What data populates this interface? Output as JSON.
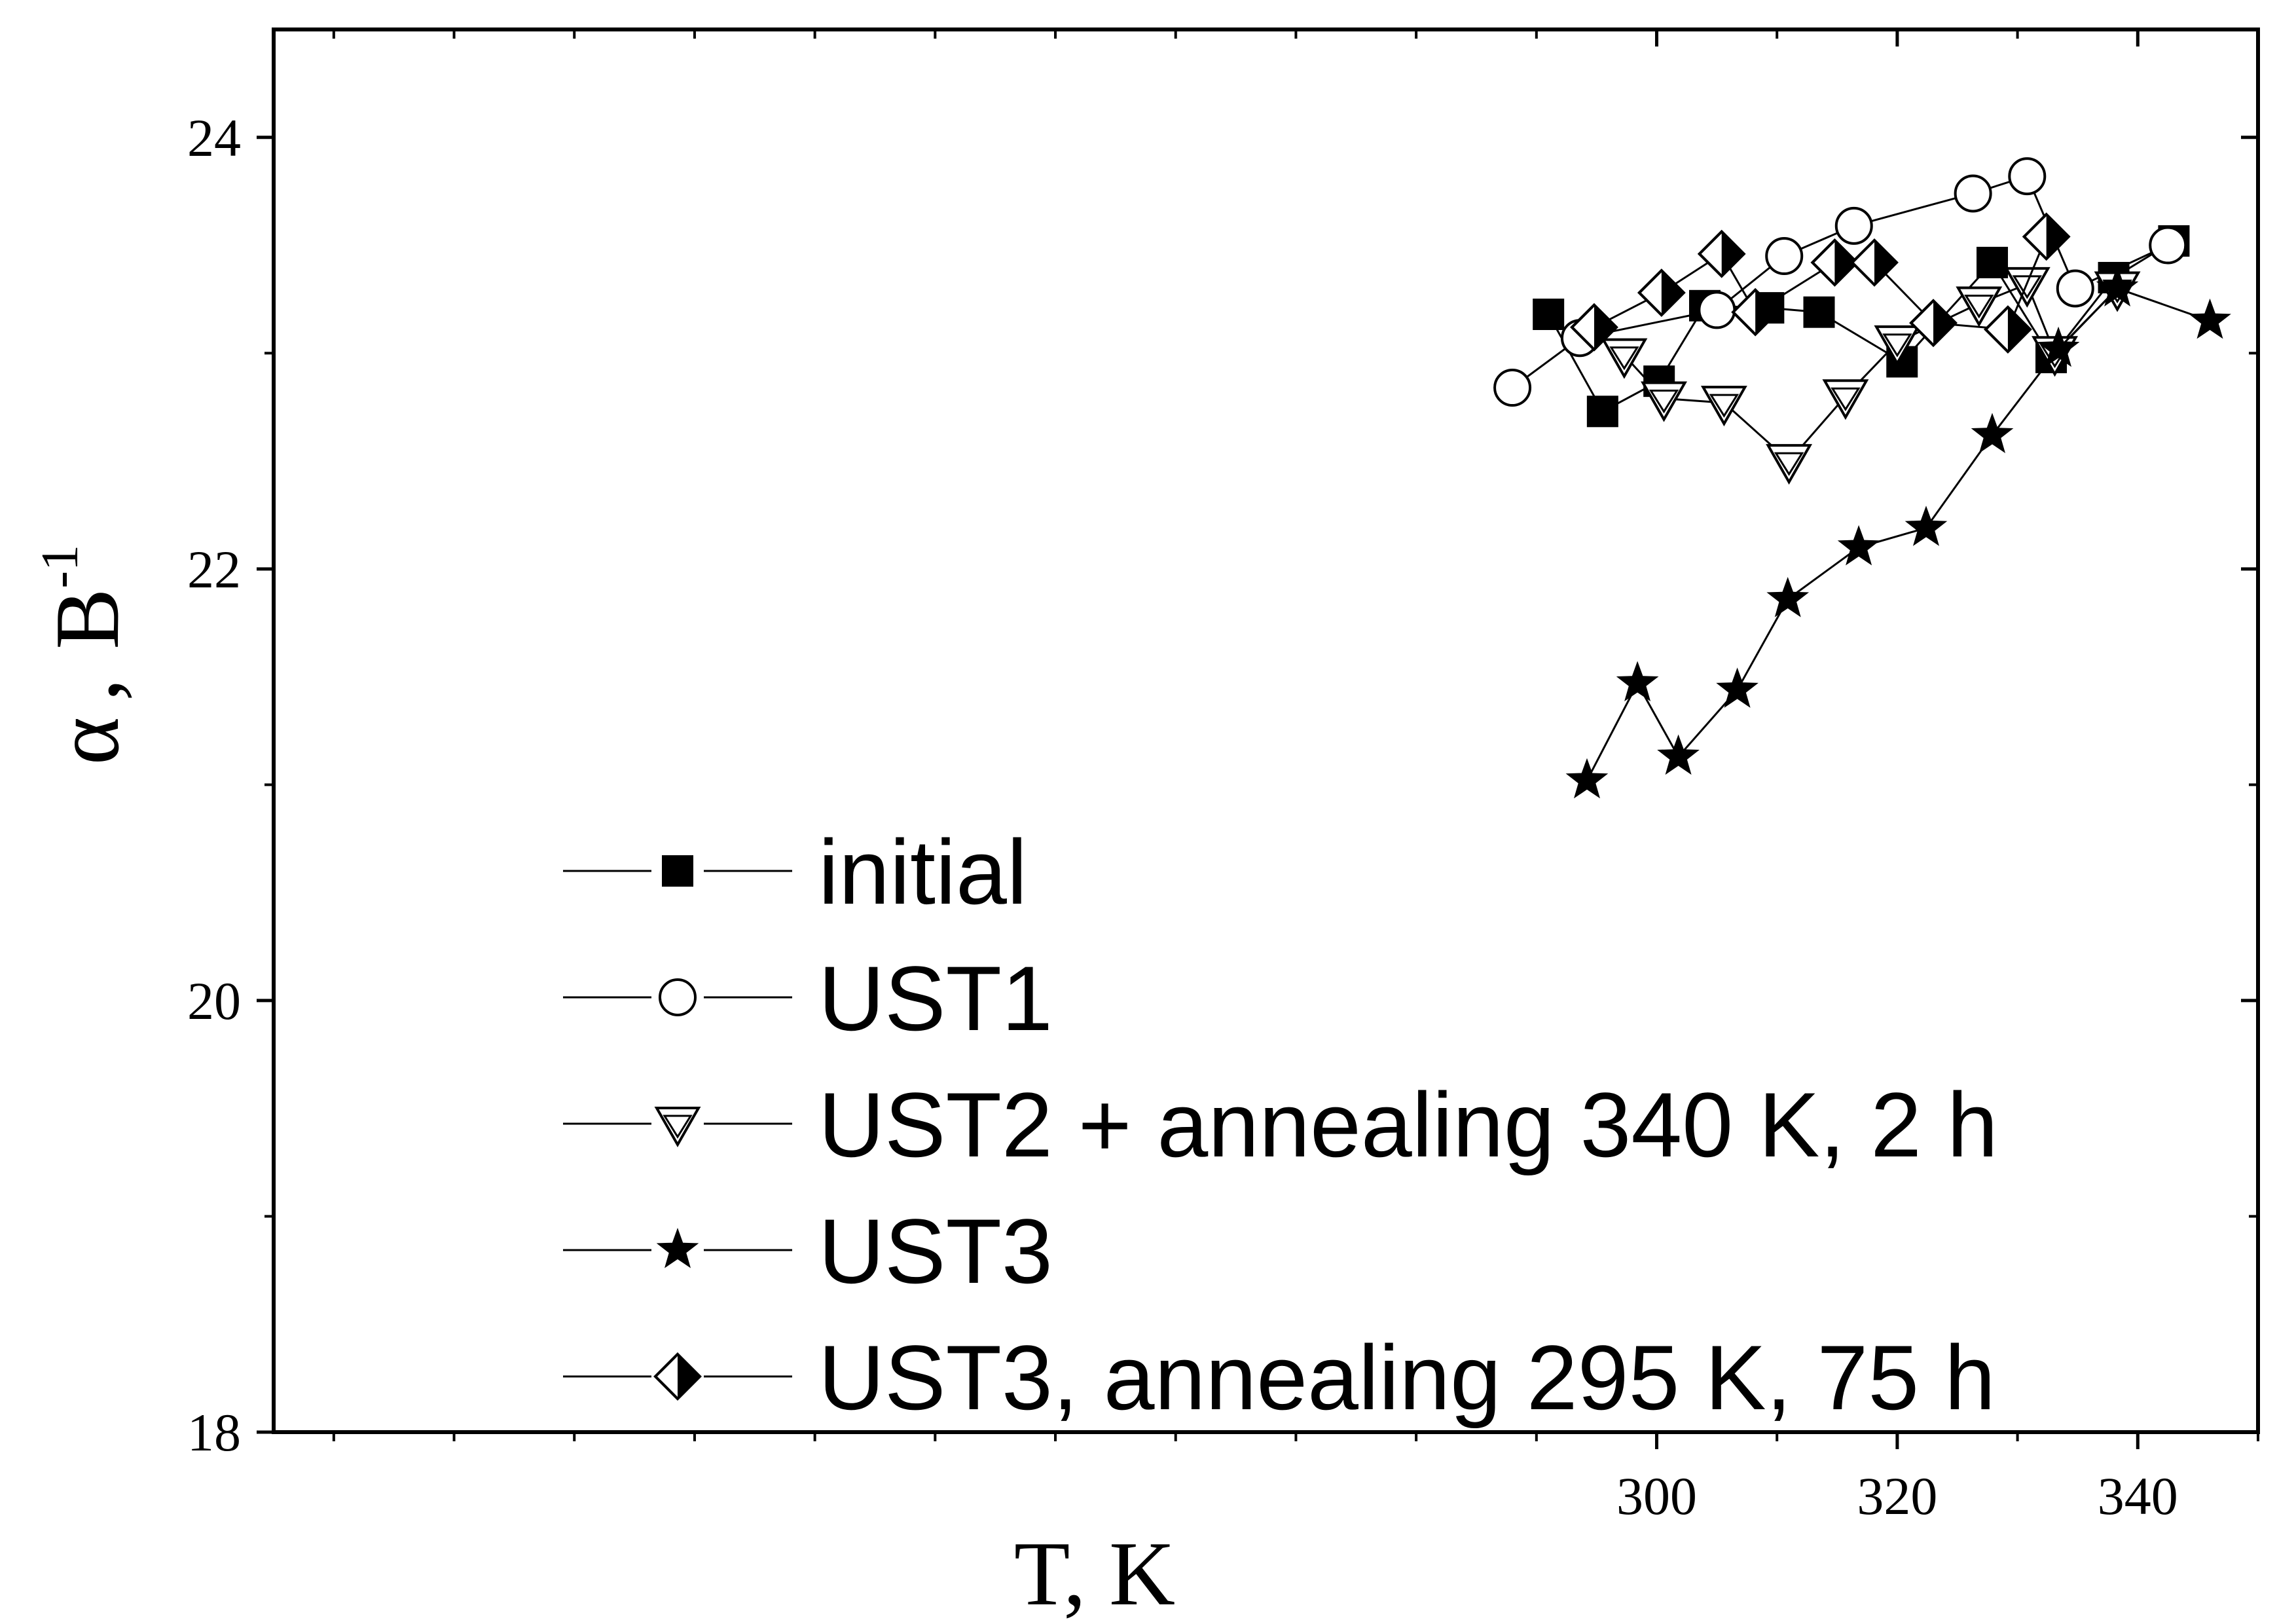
{
  "chart_data": {
    "type": "line",
    "title": "",
    "xlabel": "T, K",
    "ylabel": {
      "symbol": "α",
      "separator": ",",
      "unit": "B",
      "exponent": "-1"
    },
    "xlim": [
      185,
      350
    ],
    "ylim": [
      18,
      24.5
    ],
    "xticks": [
      300,
      320,
      340
    ],
    "xminor_ticks": [
      190,
      200,
      210,
      220,
      230,
      240,
      250,
      260,
      270,
      280,
      290,
      310,
      330,
      350
    ],
    "yticks": [
      18,
      20,
      22,
      24
    ],
    "yminor_ticks": [
      19,
      21,
      23
    ],
    "grid": false,
    "legend_position": "bottom-center",
    "series": [
      {
        "name": "initial",
        "marker": "filled-square",
        "points": [
          [
            291.0,
            23.18
          ],
          [
            295.5,
            22.73
          ],
          [
            300.2,
            22.87
          ],
          [
            304.0,
            23.22
          ],
          [
            309.3,
            23.21
          ],
          [
            313.5,
            23.19
          ],
          [
            320.4,
            22.96
          ],
          [
            327.9,
            23.42
          ],
          [
            332.8,
            22.98
          ],
          [
            338.0,
            23.35
          ],
          [
            343.0,
            23.52
          ]
        ]
      },
      {
        "name": "UST1",
        "marker": "open-circle",
        "points": [
          [
            288.0,
            22.84
          ],
          [
            293.6,
            23.07
          ],
          [
            305.0,
            23.2
          ],
          [
            310.6,
            23.45
          ],
          [
            316.4,
            23.59
          ],
          [
            326.3,
            23.74
          ],
          [
            330.8,
            23.82
          ],
          [
            334.8,
            23.3
          ],
          [
            342.5,
            23.5
          ]
        ]
      },
      {
        "name": "UST2 + annealing 340 K, 2 h",
        "marker": "open-triangle-down",
        "points": [
          [
            297.3,
            22.99
          ],
          [
            300.6,
            22.79
          ],
          [
            305.6,
            22.77
          ],
          [
            311.0,
            22.5
          ],
          [
            315.7,
            22.8
          ],
          [
            320.0,
            23.05
          ],
          [
            326.8,
            23.23
          ],
          [
            330.8,
            23.32
          ],
          [
            333.1,
            23.0
          ],
          [
            338.3,
            23.3
          ]
        ]
      },
      {
        "name": "UST3",
        "marker": "filled-star",
        "points": [
          [
            294.2,
            21.02
          ],
          [
            298.4,
            21.47
          ],
          [
            301.8,
            21.13
          ],
          [
            306.7,
            21.44
          ],
          [
            310.9,
            21.86
          ],
          [
            316.8,
            22.1
          ],
          [
            322.4,
            22.19
          ],
          [
            327.9,
            22.62
          ],
          [
            333.4,
            23.02
          ],
          [
            338.3,
            23.3
          ],
          [
            346.0,
            23.15
          ]
        ]
      },
      {
        "name": "UST3, annealing 295 K, 75 h",
        "marker": "half-filled-diamond",
        "points": [
          [
            294.8,
            23.12
          ],
          [
            300.4,
            23.28
          ],
          [
            305.4,
            23.46
          ],
          [
            308.2,
            23.19
          ],
          [
            314.8,
            23.42
          ],
          [
            318.1,
            23.42
          ],
          [
            323.0,
            23.14
          ],
          [
            329.2,
            23.11
          ],
          [
            332.4,
            23.54
          ]
        ]
      }
    ]
  }
}
